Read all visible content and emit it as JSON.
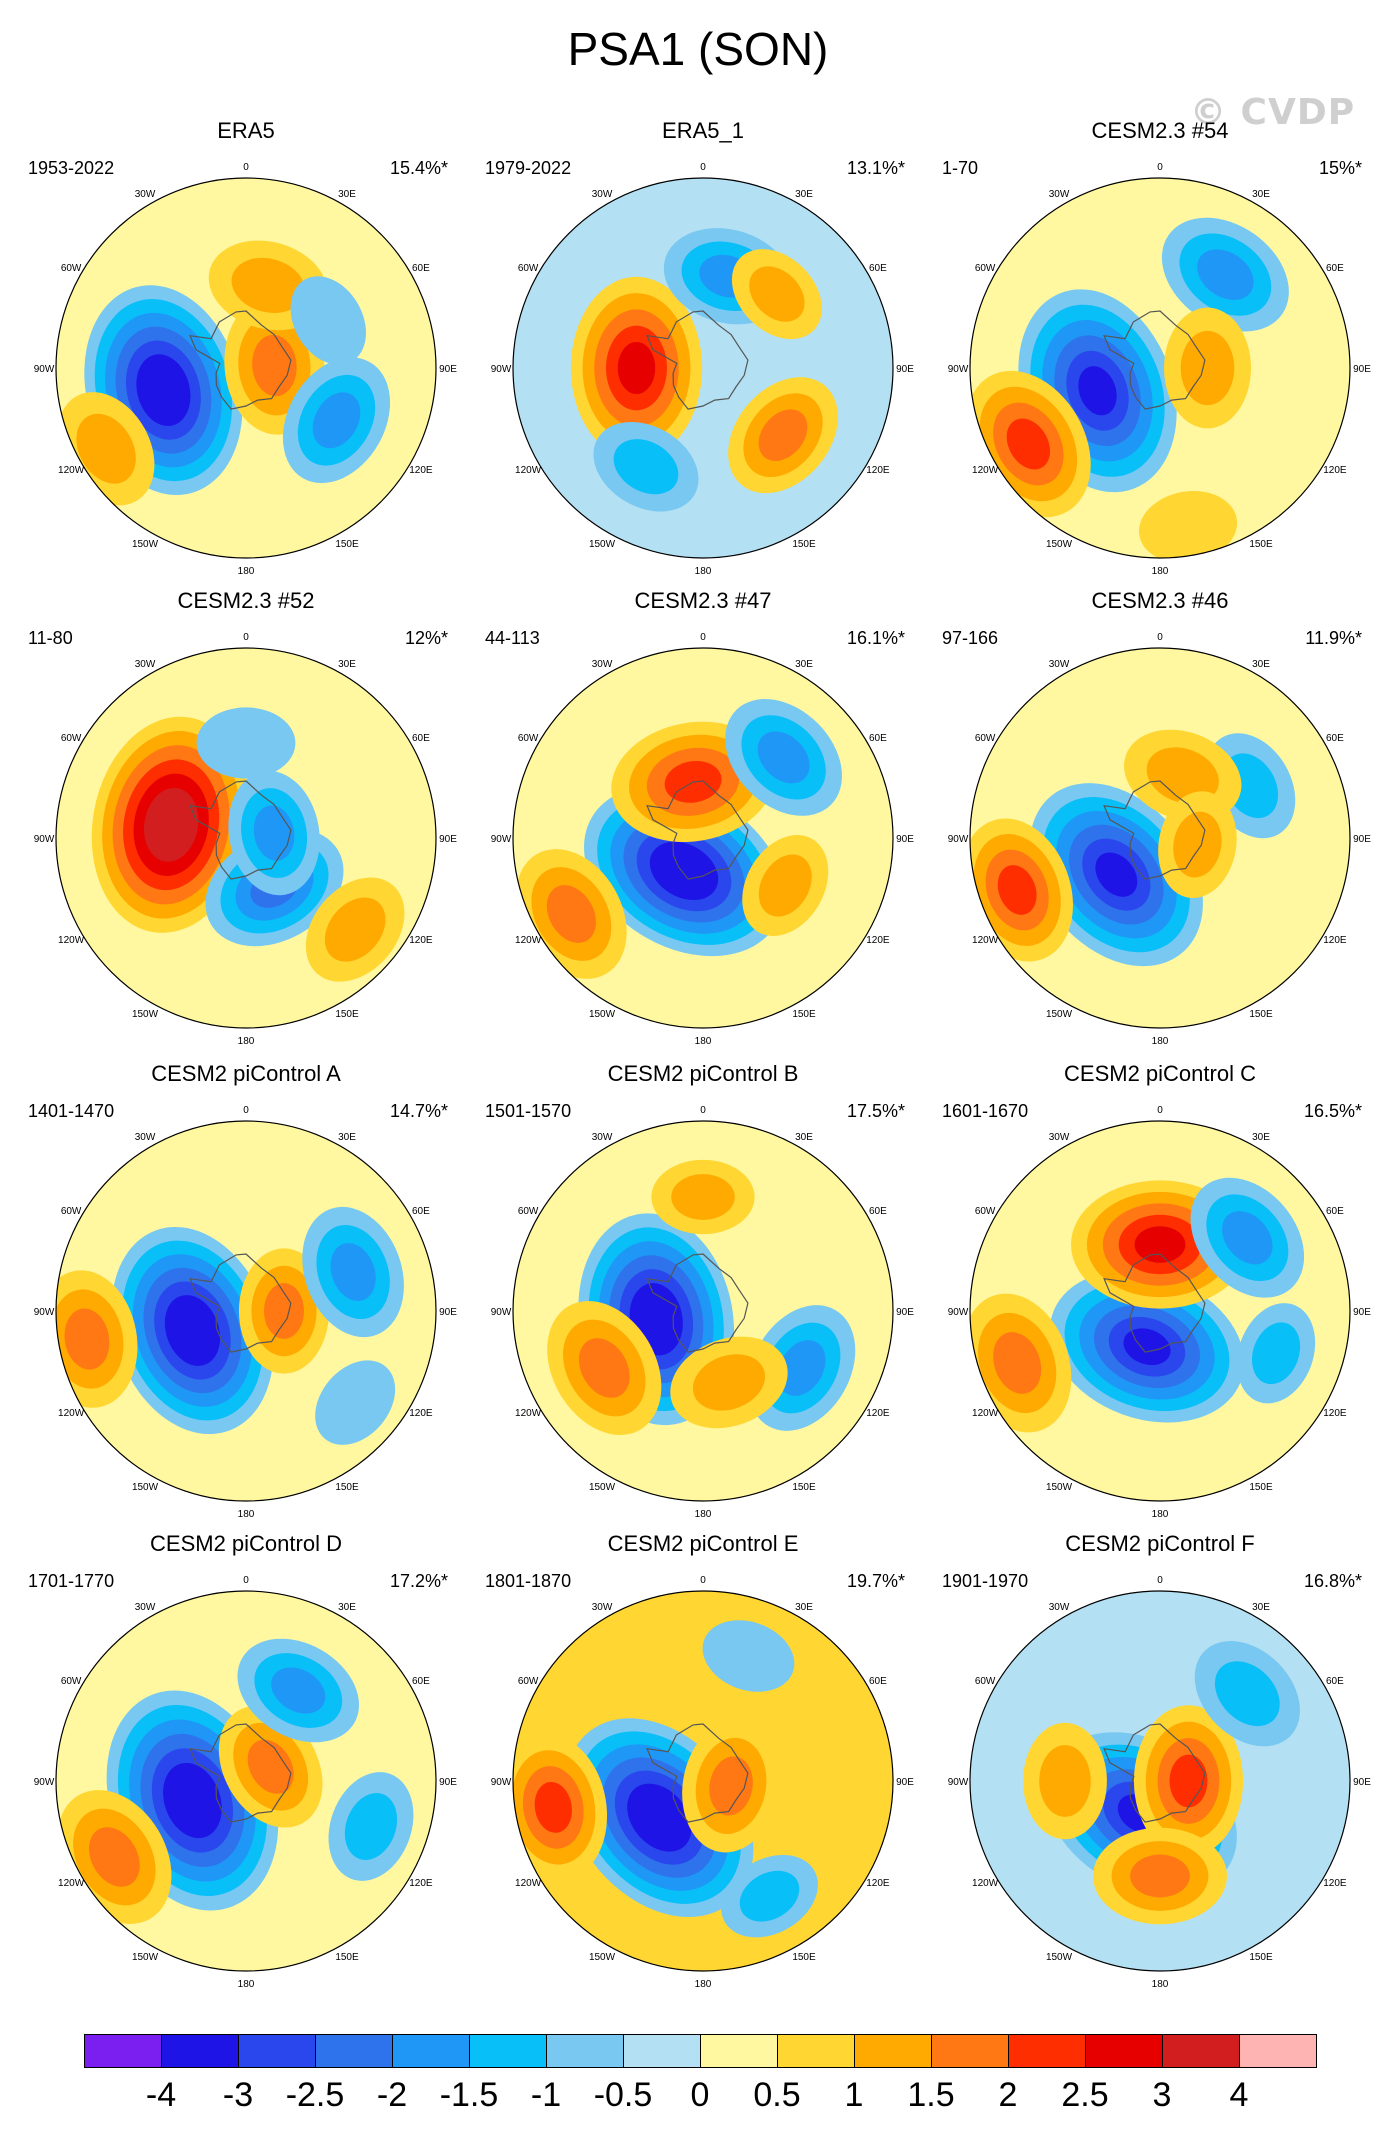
{
  "figure": {
    "title": "PSA1 (SON)",
    "watermark": "© CVDP"
  },
  "colors": {
    "coast": "#555555",
    "outline": "#000000"
  },
  "chart_data": {
    "type": "heatmap",
    "projection": "south polar stereographic",
    "colorbar": {
      "labels": [
        "-4",
        "-3",
        "-2.5",
        "-2",
        "-1.5",
        "-1",
        "-0.5",
        "0",
        "0.5",
        "1",
        "1.5",
        "2",
        "2.5",
        "3",
        "4"
      ],
      "levels": [
        -4,
        -3,
        -2.5,
        -2,
        -1.5,
        -1,
        -0.5,
        0,
        0.5,
        1,
        1.5,
        2,
        2.5,
        3,
        4
      ],
      "colors": [
        "#7a1ff0",
        "#1e14e6",
        "#2a47ee",
        "#2f73ec",
        "#1e97f6",
        "#08bff8",
        "#78c8f2",
        "#b3e0f2",
        "#fff8a0",
        "#ffd632",
        "#ffaa00",
        "#ff7814",
        "#ff2e00",
        "#e60000",
        "#d21e1e",
        "#ffb4b4"
      ]
    },
    "lon_labels": [
      "0",
      "30E",
      "60E",
      "90E",
      "120E",
      "150E",
      "180",
      "150W",
      "120W",
      "90W",
      "60W",
      "30W"
    ],
    "panels": [
      {
        "title": "ERA5",
        "period": "1953-2022",
        "pct": "15.4%*",
        "bg": 0.3,
        "blobs": [
          {
            "lon": -105,
            "r": 0.45,
            "v": -3.3
          },
          {
            "lon": 85,
            "r": 0.15,
            "v": 1.6
          },
          {
            "lon": 120,
            "r": 0.55,
            "v": -1.5
          },
          {
            "lon": -120,
            "r": 0.85,
            "v": 1.2
          },
          {
            "lon": 15,
            "r": 0.45,
            "v": 1.2
          },
          {
            "lon": 60,
            "r": 0.5,
            "v": -0.6
          }
        ]
      },
      {
        "title": "ERA5_1",
        "period": "1979-2022",
        "pct": "13.1%*",
        "bg": -0.3,
        "blobs": [
          {
            "lon": -90,
            "r": 0.35,
            "v": 2.6
          },
          {
            "lon": 15,
            "r": 0.5,
            "v": -1.4
          },
          {
            "lon": 130,
            "r": 0.55,
            "v": 1.4
          },
          {
            "lon": -150,
            "r": 0.6,
            "v": -1.0
          },
          {
            "lon": 45,
            "r": 0.55,
            "v": 0.8
          }
        ]
      },
      {
        "title": "CESM2.3 #54",
        "period": "1-70",
        "pct": "15%*",
        "bg": 0.4,
        "blobs": [
          {
            "lon": -110,
            "r": 0.35,
            "v": -3.2
          },
          {
            "lon": -120,
            "r": 0.8,
            "v": 2.0
          },
          {
            "lon": 35,
            "r": 0.6,
            "v": -1.6
          },
          {
            "lon": 90,
            "r": 0.25,
            "v": 1.2
          },
          {
            "lon": 170,
            "r": 0.85,
            "v": 0.7
          }
        ]
      },
      {
        "title": "CESM2.3 #52",
        "period": "11-80",
        "pct": "12%*",
        "bg": 0.2,
        "blobs": [
          {
            "lon": -80,
            "r": 0.4,
            "v": 3.4
          },
          {
            "lon": 150,
            "r": 0.3,
            "v": -1.8
          },
          {
            "lon": 80,
            "r": 0.15,
            "v": -1.3
          },
          {
            "lon": 130,
            "r": 0.75,
            "v": 1.1
          },
          {
            "lon": 0,
            "r": 0.5,
            "v": -0.7
          }
        ]
      },
      {
        "title": "CESM2.3 #47",
        "period": "44-113",
        "pct": "16.1%*",
        "bg": 0.4,
        "blobs": [
          {
            "lon": -150,
            "r": 0.2,
            "v": -3.3
          },
          {
            "lon": -10,
            "r": 0.3,
            "v": 2.2
          },
          {
            "lon": 45,
            "r": 0.6,
            "v": -1.5
          },
          {
            "lon": -120,
            "r": 0.8,
            "v": 1.6
          },
          {
            "lon": 120,
            "r": 0.5,
            "v": 0.9
          }
        ]
      },
      {
        "title": "CESM2.3 #46",
        "period": "97-166",
        "pct": "11.9%*",
        "bg": 0.3,
        "blobs": [
          {
            "lon": -130,
            "r": 0.3,
            "v": -3.1
          },
          {
            "lon": -110,
            "r": 0.8,
            "v": 1.8
          },
          {
            "lon": 60,
            "r": 0.55,
            "v": -1.0
          },
          {
            "lon": 20,
            "r": 0.35,
            "v": 1.2
          },
          {
            "lon": 100,
            "r": 0.2,
            "v": 0.9
          }
        ]
      },
      {
        "title": "CESM2 piControl A",
        "period": "1401-1470",
        "pct": "14.7%*",
        "bg": 0.4,
        "blobs": [
          {
            "lon": -110,
            "r": 0.3,
            "v": -3.3
          },
          {
            "lon": -100,
            "r": 0.85,
            "v": 1.6
          },
          {
            "lon": 90,
            "r": 0.2,
            "v": 1.3
          },
          {
            "lon": 70,
            "r": 0.6,
            "v": -1.5
          },
          {
            "lon": 130,
            "r": 0.75,
            "v": -0.6
          }
        ]
      },
      {
        "title": "CESM2 piControl B",
        "period": "1501-1570",
        "pct": "17.5%*",
        "bg": 0.4,
        "blobs": [
          {
            "lon": -100,
            "r": 0.25,
            "v": -3.3
          },
          {
            "lon": -120,
            "r": 0.6,
            "v": 1.7
          },
          {
            "lon": 120,
            "r": 0.6,
            "v": -1.5
          },
          {
            "lon": 0,
            "r": 0.6,
            "v": 0.8
          },
          {
            "lon": 160,
            "r": 0.4,
            "v": 1.2
          }
        ]
      },
      {
        "title": "CESM2 piControl C",
        "period": "1601-1670",
        "pct": "16.5%*",
        "bg": 0.3,
        "blobs": [
          {
            "lon": -160,
            "r": 0.2,
            "v": -3.0
          },
          {
            "lon": 0,
            "r": 0.35,
            "v": 2.5
          },
          {
            "lon": 50,
            "r": 0.6,
            "v": -1.5
          },
          {
            "lon": -110,
            "r": 0.8,
            "v": 1.7
          },
          {
            "lon": 110,
            "r": 0.65,
            "v": -0.8
          }
        ]
      },
      {
        "title": "CESM2 piControl D",
        "period": "1701-1770",
        "pct": "17.2%*",
        "bg": 0.4,
        "blobs": [
          {
            "lon": -110,
            "r": 0.3,
            "v": -3.6
          },
          {
            "lon": -120,
            "r": 0.8,
            "v": 1.7
          },
          {
            "lon": 60,
            "r": 0.15,
            "v": 1.4
          },
          {
            "lon": 30,
            "r": 0.55,
            "v": -1.4
          },
          {
            "lon": 110,
            "r": 0.7,
            "v": -1.0
          }
        ]
      },
      {
        "title": "CESM2 piControl E",
        "period": "1801-1870",
        "pct": "19.7%*",
        "bg": 0.5,
        "blobs": [
          {
            "lon": -130,
            "r": 0.3,
            "v": -3.5
          },
          {
            "lon": -100,
            "r": 0.8,
            "v": 1.8
          },
          {
            "lon": 100,
            "r": 0.15,
            "v": 1.5
          },
          {
            "lon": 150,
            "r": 0.7,
            "v": -0.8
          },
          {
            "lon": 20,
            "r": 0.7,
            "v": -0.6
          }
        ]
      },
      {
        "title": "CESM2 piControl F",
        "period": "1901-1970",
        "pct": "16.8%*",
        "bg": -0.2,
        "blobs": [
          {
            "lon": -150,
            "r": 0.2,
            "v": -3.1
          },
          {
            "lon": 90,
            "r": 0.15,
            "v": 1.9
          },
          {
            "lon": 180,
            "r": 0.5,
            "v": 1.5
          },
          {
            "lon": -90,
            "r": 0.5,
            "v": 1.1
          },
          {
            "lon": 45,
            "r": 0.65,
            "v": -1.2
          }
        ]
      }
    ]
  }
}
